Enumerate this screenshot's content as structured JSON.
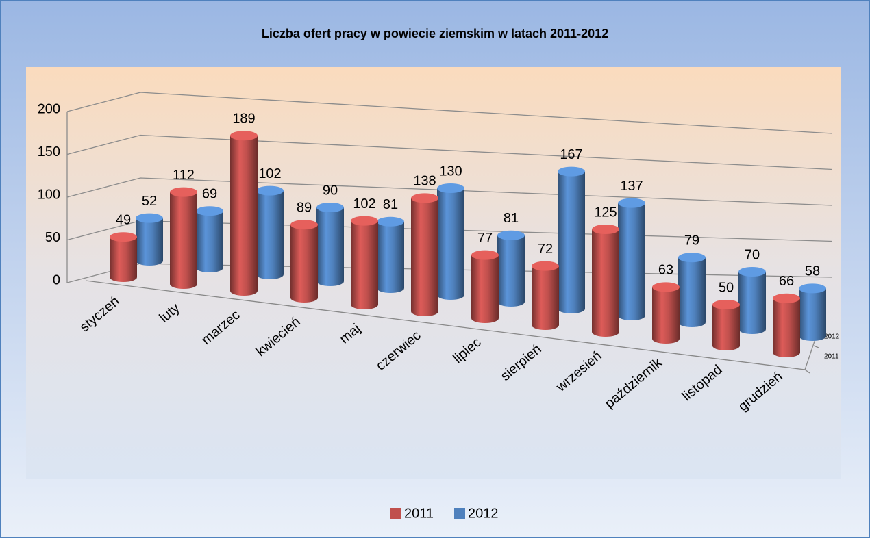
{
  "chart_data": {
    "type": "bar3d",
    "title": "Liczba ofert pracy w powiecie ziemskim w latach 2011-2012",
    "categories": [
      "styczeń",
      "luty",
      "marzec",
      "kwiecień",
      "maj",
      "czerwiec",
      "lipiec",
      "sierpień",
      "wrzesień",
      "październik",
      "listopad",
      "grudzień"
    ],
    "series": [
      {
        "name": "2011",
        "color": "#c0504d",
        "values": [
          49,
          112,
          189,
          89,
          102,
          138,
          77,
          72,
          125,
          63,
          50,
          66
        ]
      },
      {
        "name": "2012",
        "color": "#4f81bd",
        "values": [
          52,
          69,
          102,
          90,
          81,
          130,
          81,
          167,
          137,
          79,
          70,
          58
        ]
      }
    ],
    "ylim": [
      0,
      200
    ],
    "yticks": [
      0,
      50,
      100,
      150,
      200
    ],
    "grid": true,
    "legend": "bottom"
  }
}
